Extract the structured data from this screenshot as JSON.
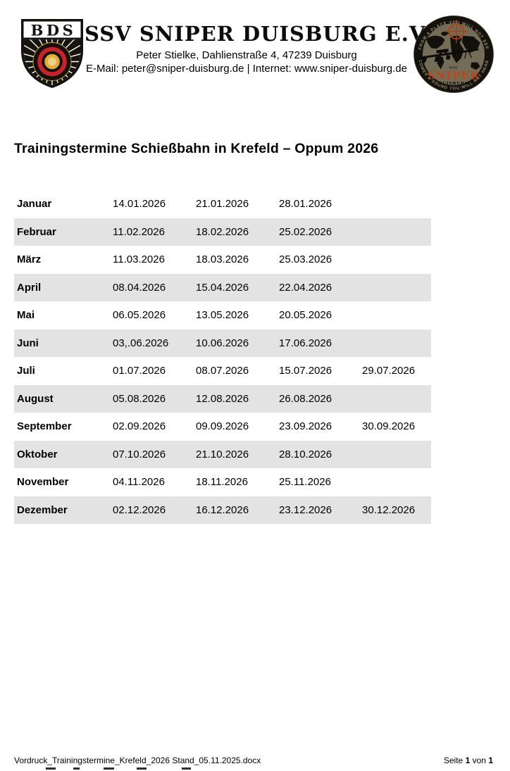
{
  "header": {
    "club_name": "SSV SNIPER DUISBURG E.V.",
    "address_line": "Peter Stielke, Dahlienstraße 4, 47239 Duisburg",
    "contact_line": "E-Mail: peter@sniper-duisburg.de | Internet: www.sniper-duisburg.de",
    "bds_logo": {
      "text": "BDS",
      "colors": {
        "red": "#c8232c",
        "gold": "#dfae39",
        "pale_gold": "#eecf85",
        "black": "#14110e"
      }
    },
    "patch_logo": {
      "top_arc_text": "FROM A PLACE YOU WILL NOT SEE",
      "bottom_arc_text": "COMES A SOUND YOU WILL NOT HEAR",
      "line_ssv": "SSV",
      "line_sniper": "SNIPER",
      "line_duisburg": "DUISBURG",
      "line_est": "EST. 1995",
      "colors": {
        "olive": "#736d57",
        "ring": "#15120d",
        "ring_text": "#9a9078",
        "sniper_red": "#bf451c",
        "crosshair_red": "#ac3e15"
      }
    }
  },
  "document": {
    "title": "Trainingstermine Schießbahn in Krefeld – Oppum 2026"
  },
  "schedule": {
    "stripe_color": "#e3e3e3",
    "rows": [
      {
        "month": "Januar",
        "dates": [
          "14.01.2026",
          "21.01.2026",
          "28.01.2026"
        ]
      },
      {
        "month": "Februar",
        "dates": [
          "11.02.2026",
          "18.02.2026",
          "25.02.2026"
        ]
      },
      {
        "month": "März",
        "dates": [
          "11.03.2026",
          "18.03.2026",
          "25.03.2026"
        ]
      },
      {
        "month": "April",
        "dates": [
          "08.04.2026",
          "15.04.2026",
          "22.04.2026"
        ]
      },
      {
        "month": "Mai",
        "dates": [
          "06.05.2026",
          "13.05.2026",
          "20.05.2026"
        ]
      },
      {
        "month": "Juni",
        "dates": [
          "03,.06.2026",
          "10.06.2026",
          "17.06.2026"
        ]
      },
      {
        "month": "Juli",
        "dates": [
          "01.07.2026",
          "08.07.2026",
          "15.07.2026",
          "29.07.2026"
        ]
      },
      {
        "month": "August",
        "dates": [
          "05.08.2026",
          "12.08.2026",
          "26.08.2026"
        ]
      },
      {
        "month": "September",
        "dates": [
          "02.09.2026",
          "09.09.2026",
          "23.09.2026",
          "30.09.2026"
        ]
      },
      {
        "month": "Oktober",
        "dates": [
          "07.10.2026",
          "21.10.2026",
          "28.10.2026"
        ]
      },
      {
        "month": "November",
        "dates": [
          "04.11.2026",
          "18.11.2026",
          "25.11.2026"
        ]
      },
      {
        "month": "Dezember",
        "dates": [
          "02.12.2026",
          "16.12.2026",
          "23.12.2026",
          "30.12.2026"
        ]
      }
    ]
  },
  "footer": {
    "filename": "Vordruck_Trainingstermine_Krefeld_2026 Stand_05.11.2025.docx",
    "page_prefix": "Seite",
    "page_current": "1",
    "page_sep": "von",
    "page_total": "1"
  }
}
